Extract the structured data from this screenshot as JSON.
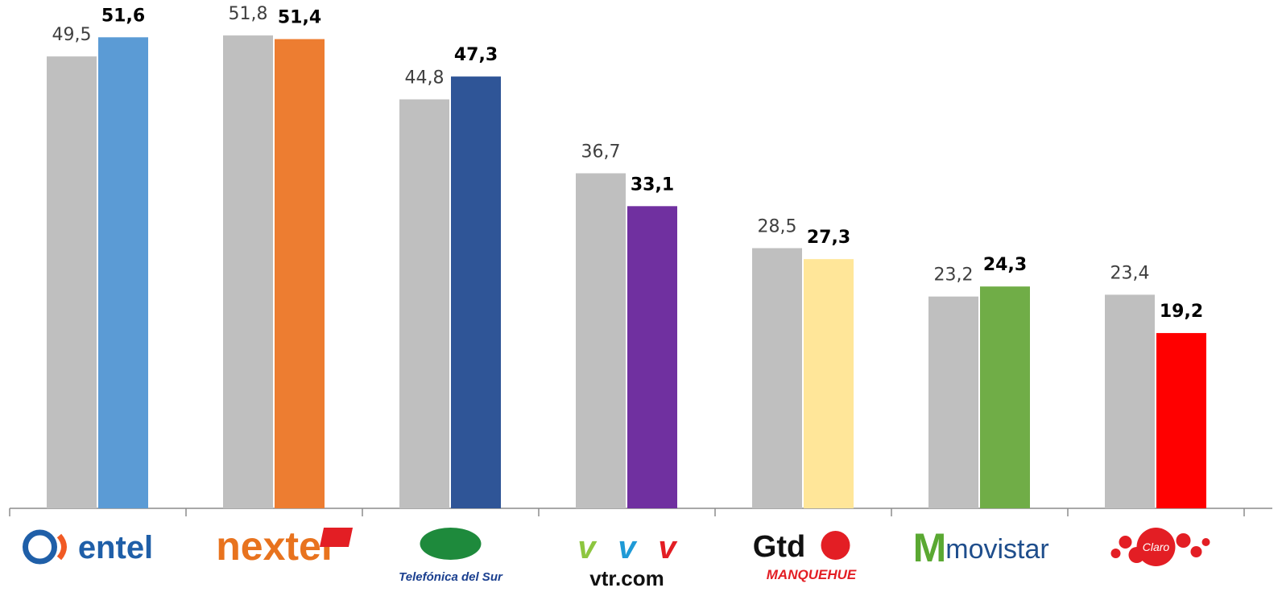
{
  "chart_data": {
    "type": "bar",
    "title": "",
    "xlabel": "",
    "ylabel": "",
    "ylim": [
      0,
      55
    ],
    "grid": false,
    "legend": "none",
    "categories": [
      "entel",
      "nextel",
      "Telefónica del Sur",
      "vtr.com",
      "Gtd Manquehue",
      "movistar",
      "Claro"
    ],
    "series": [
      {
        "values": [
          49.5,
          51.8,
          44.8,
          36.7,
          28.5,
          23.2,
          23.4
        ],
        "labels": [
          "49,5",
          "51,8",
          "44,8",
          "36,7",
          "28,5",
          "23,2",
          "23,4"
        ],
        "color": "#bfbfbf"
      },
      {
        "values": [
          51.6,
          51.4,
          47.3,
          33.1,
          27.3,
          24.3,
          19.2
        ],
        "labels": [
          "51,6",
          "51,4",
          "47,3",
          "33,1",
          "27,3",
          "24,3",
          "19,2"
        ],
        "colors": [
          "#5b9bd5",
          "#ed7d31",
          "#2f5597",
          "#7030a0",
          "#ffe699",
          "#70ad47",
          "#ff0000"
        ]
      }
    ],
    "logos": [
      {
        "icon": "entel-logo",
        "text": "entel",
        "color": "#1f5fa8"
      },
      {
        "icon": "nextel-logo",
        "text": "nextel",
        "color": "#e8731e"
      },
      {
        "icon": "telefonica-del-sur-logo",
        "text": "Telefónica del Sur",
        "color": "#1a3f8f"
      },
      {
        "icon": "vtr-logo",
        "text": "vtr.com",
        "color": "#111111"
      },
      {
        "icon": "gtd-manquehue-logo",
        "text": "Gtd",
        "subtext": "MANQUEHUE",
        "color": "#111111"
      },
      {
        "icon": "movistar-logo",
        "text": "movistar",
        "color": "#5aa832"
      },
      {
        "icon": "claro-logo",
        "text": "Claro",
        "color": "#e31e24"
      }
    ]
  }
}
